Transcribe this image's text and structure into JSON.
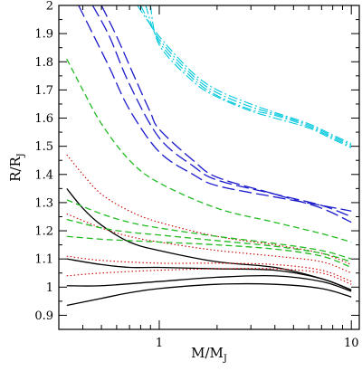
{
  "chart_data": {
    "type": "line",
    "xlabel": "M/M",
    "xlabel_sub": "J",
    "ylabel": "R/R",
    "ylabel_sub": "J",
    "xscale": "log",
    "xlim": [
      0.3,
      11
    ],
    "ylim": [
      0.85,
      2.0
    ],
    "x_major_ticks": [
      {
        "value": 1,
        "label": "1"
      },
      {
        "value": 10,
        "label": "10"
      }
    ],
    "x_minor_ticks": [
      0.3,
      0.4,
      0.5,
      0.6,
      0.7,
      0.8,
      0.9,
      2,
      3,
      4,
      5,
      6,
      7,
      8,
      9
    ],
    "y_major_ticks": [
      {
        "value": 0.9,
        "label": "0.9"
      },
      {
        "value": 1.0,
        "label": "1"
      },
      {
        "value": 1.1,
        "label": "1.1"
      },
      {
        "value": 1.2,
        "label": "1.2"
      },
      {
        "value": 1.3,
        "label": "1.3"
      },
      {
        "value": 1.4,
        "label": "1.4"
      },
      {
        "value": 1.5,
        "label": "1.5"
      },
      {
        "value": 1.6,
        "label": "1.6"
      },
      {
        "value": 1.7,
        "label": "1.7"
      },
      {
        "value": 1.8,
        "label": "1.8"
      },
      {
        "value": 1.9,
        "label": "1.9"
      },
      {
        "value": 2.0,
        "label": "2"
      }
    ],
    "series": [
      {
        "style": "solid",
        "color": "#000000",
        "points": [
          [
            0.33,
            1.35
          ],
          [
            0.4,
            1.28
          ],
          [
            0.5,
            1.22
          ],
          [
            0.7,
            1.16
          ],
          [
            1,
            1.13
          ],
          [
            2,
            1.09
          ],
          [
            4,
            1.07
          ],
          [
            7,
            1.03
          ],
          [
            10,
            0.99
          ]
        ]
      },
      {
        "style": "solid",
        "color": "#000000",
        "points": [
          [
            0.33,
            1.1
          ],
          [
            0.5,
            1.08
          ],
          [
            0.7,
            1.07
          ],
          [
            1,
            1.07
          ],
          [
            2,
            1.065
          ],
          [
            4,
            1.06
          ],
          [
            7,
            1.03
          ],
          [
            10,
            0.99
          ]
        ]
      },
      {
        "style": "solid",
        "color": "#000000",
        "points": [
          [
            0.33,
            1.005
          ],
          [
            0.5,
            1.005
          ],
          [
            1,
            1.02
          ],
          [
            2,
            1.035
          ],
          [
            4,
            1.04
          ],
          [
            7,
            1.02
          ],
          [
            10,
            0.985
          ]
        ]
      },
      {
        "style": "solid",
        "color": "#000000",
        "points": [
          [
            0.33,
            0.935
          ],
          [
            0.5,
            0.96
          ],
          [
            0.7,
            0.98
          ],
          [
            1,
            0.995
          ],
          [
            2,
            1.01
          ],
          [
            4,
            1.01
          ],
          [
            7,
            0.995
          ],
          [
            10,
            0.965
          ]
        ]
      },
      {
        "style": "dotted",
        "color": "#cc0000",
        "points": [
          [
            0.33,
            1.47
          ],
          [
            0.4,
            1.4
          ],
          [
            0.5,
            1.33
          ],
          [
            0.7,
            1.27
          ],
          [
            1,
            1.23
          ],
          [
            2,
            1.18
          ],
          [
            4,
            1.15
          ],
          [
            7,
            1.12
          ],
          [
            10,
            1.08
          ]
        ]
      },
      {
        "style": "dotted",
        "color": "#cc0000",
        "points": [
          [
            0.33,
            1.26
          ],
          [
            0.5,
            1.21
          ],
          [
            0.7,
            1.18
          ],
          [
            1,
            1.16
          ],
          [
            2,
            1.13
          ],
          [
            4,
            1.11
          ],
          [
            7,
            1.09
          ],
          [
            10,
            1.05
          ]
        ]
      },
      {
        "style": "dotted",
        "color": "#cc0000",
        "points": [
          [
            0.33,
            1.11
          ],
          [
            0.5,
            1.095
          ],
          [
            1,
            1.085
          ],
          [
            2,
            1.085
          ],
          [
            4,
            1.08
          ],
          [
            7,
            1.06
          ],
          [
            10,
            1.02
          ]
        ]
      },
      {
        "style": "dotted",
        "color": "#cc0000",
        "points": [
          [
            0.33,
            1.04
          ],
          [
            0.5,
            1.05
          ],
          [
            1,
            1.06
          ],
          [
            2,
            1.065
          ],
          [
            4,
            1.065
          ],
          [
            7,
            1.05
          ],
          [
            10,
            1.01
          ]
        ]
      },
      {
        "style": "dashed",
        "color": "#22bb22",
        "points": [
          [
            0.33,
            1.81
          ],
          [
            0.4,
            1.7
          ],
          [
            0.5,
            1.58
          ],
          [
            0.7,
            1.45
          ],
          [
            1,
            1.37
          ],
          [
            2,
            1.28
          ],
          [
            4,
            1.23
          ],
          [
            7,
            1.19
          ],
          [
            10,
            1.16
          ]
        ]
      },
      {
        "style": "dashed",
        "color": "#22bb22",
        "points": [
          [
            0.33,
            1.31
          ],
          [
            0.5,
            1.26
          ],
          [
            0.7,
            1.23
          ],
          [
            1,
            1.21
          ],
          [
            2,
            1.18
          ],
          [
            4,
            1.155
          ],
          [
            7,
            1.13
          ],
          [
            10,
            1.1
          ]
        ]
      },
      {
        "style": "dashed",
        "color": "#22bb22",
        "points": [
          [
            0.33,
            1.24
          ],
          [
            0.5,
            1.21
          ],
          [
            0.7,
            1.195
          ],
          [
            1,
            1.185
          ],
          [
            2,
            1.165
          ],
          [
            4,
            1.145
          ],
          [
            7,
            1.12
          ],
          [
            10,
            1.09
          ]
        ]
      },
      {
        "style": "dashed",
        "color": "#22bb22",
        "points": [
          [
            0.33,
            1.18
          ],
          [
            0.5,
            1.17
          ],
          [
            0.7,
            1.165
          ],
          [
            1,
            1.16
          ],
          [
            2,
            1.15
          ],
          [
            4,
            1.135
          ],
          [
            7,
            1.11
          ],
          [
            10,
            1.07
          ]
        ]
      },
      {
        "style": "longdash",
        "color": "#1a1acc",
        "points": [
          [
            0.38,
            2.0
          ],
          [
            0.45,
            1.9
          ],
          [
            0.55,
            1.78
          ],
          [
            0.7,
            1.63
          ],
          [
            1,
            1.48
          ],
          [
            1.5,
            1.4
          ],
          [
            2,
            1.36
          ],
          [
            4,
            1.32
          ],
          [
            7,
            1.29
          ],
          [
            10,
            1.27
          ]
        ]
      },
      {
        "style": "longdash",
        "color": "#1a1acc",
        "points": [
          [
            0.45,
            2.0
          ],
          [
            0.55,
            1.89
          ],
          [
            0.7,
            1.72
          ],
          [
            1,
            1.53
          ],
          [
            1.5,
            1.43
          ],
          [
            2,
            1.38
          ],
          [
            4,
            1.33
          ],
          [
            7,
            1.29
          ],
          [
            10,
            1.25
          ]
        ]
      },
      {
        "style": "longdash",
        "color": "#1a1acc",
        "points": [
          [
            0.5,
            2.0
          ],
          [
            0.6,
            1.89
          ],
          [
            0.75,
            1.74
          ],
          [
            0.9,
            1.62
          ],
          [
            1,
            1.56
          ],
          [
            1.5,
            1.45
          ],
          [
            2,
            1.39
          ],
          [
            4,
            1.33
          ],
          [
            7,
            1.28
          ],
          [
            10,
            1.23
          ]
        ]
      },
      {
        "style": "dashdot",
        "color": "#00c8dd",
        "points": [
          [
            0.77,
            2.0
          ],
          [
            1,
            1.89
          ],
          [
            1.5,
            1.76
          ],
          [
            2,
            1.7
          ],
          [
            3,
            1.65
          ],
          [
            4,
            1.62
          ],
          [
            6,
            1.58
          ],
          [
            8,
            1.54
          ],
          [
            10,
            1.51
          ]
        ]
      },
      {
        "style": "dashdot",
        "color": "#00c8dd",
        "points": [
          [
            0.8,
            2.0
          ],
          [
            1,
            1.88
          ],
          [
            1.5,
            1.75
          ],
          [
            2,
            1.69
          ],
          [
            3,
            1.64
          ],
          [
            4,
            1.615
          ],
          [
            6,
            1.575
          ],
          [
            8,
            1.535
          ],
          [
            10,
            1.505
          ]
        ]
      },
      {
        "style": "dashdot",
        "color": "#00c8dd",
        "points": [
          [
            0.85,
            2.0
          ],
          [
            1,
            1.87
          ],
          [
            1.5,
            1.74
          ],
          [
            2,
            1.68
          ],
          [
            3,
            1.63
          ],
          [
            4,
            1.61
          ],
          [
            6,
            1.57
          ],
          [
            8,
            1.53
          ],
          [
            10,
            1.5
          ]
        ]
      },
      {
        "style": "dashdot",
        "color": "#00c8dd",
        "points": [
          [
            0.9,
            2.0
          ],
          [
            1,
            1.86
          ],
          [
            1.5,
            1.73
          ],
          [
            2,
            1.675
          ],
          [
            3,
            1.625
          ],
          [
            4,
            1.6
          ],
          [
            6,
            1.565
          ],
          [
            8,
            1.525
          ],
          [
            10,
            1.495
          ]
        ]
      }
    ]
  }
}
